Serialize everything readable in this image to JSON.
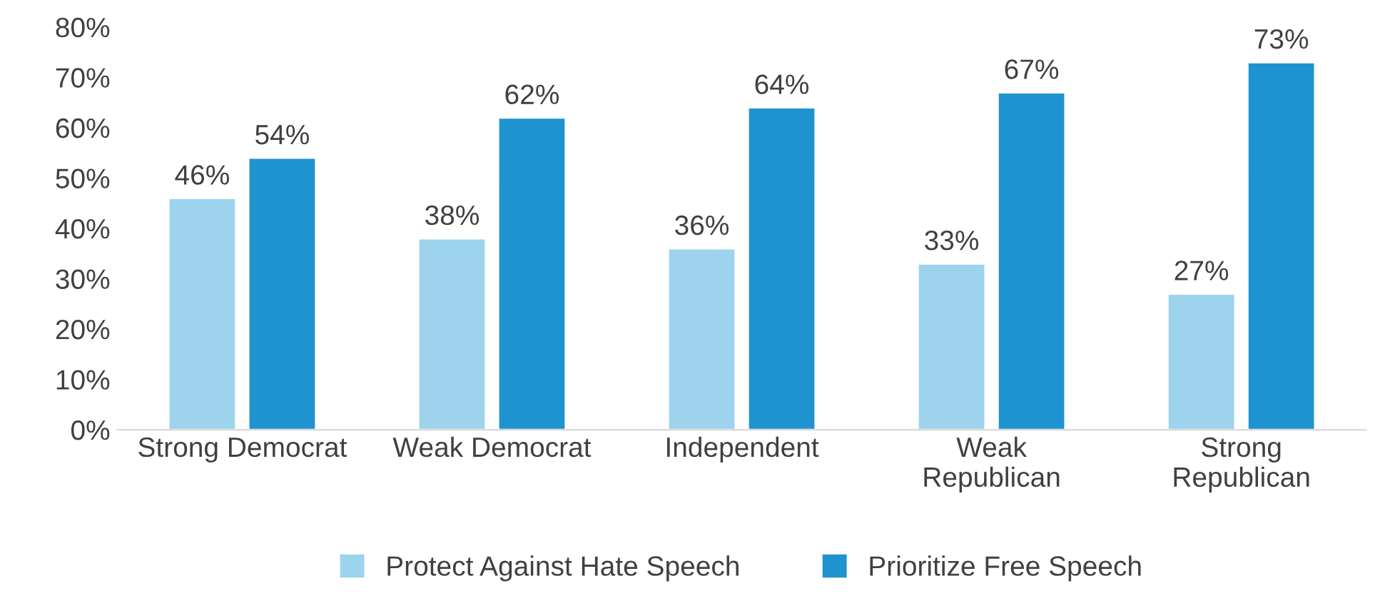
{
  "chart_data": {
    "type": "bar",
    "categories": [
      "Strong Democrat",
      "Weak Democrat",
      "Independent",
      "Weak\nRepublican",
      "Strong\nRepublican"
    ],
    "series": [
      {
        "name": "Protect Against Hate Speech",
        "color": "#9dd3ec",
        "values": [
          46,
          38,
          36,
          33,
          27
        ],
        "value_labels": [
          "46%",
          "38%",
          "36%",
          "33%",
          "27%"
        ]
      },
      {
        "name": "Prioritize Free Speech",
        "color": "#1f93cf",
        "values": [
          54,
          62,
          64,
          67,
          73
        ],
        "value_labels": [
          "54%",
          "62%",
          "64%",
          "67%",
          "73%"
        ]
      }
    ],
    "ylim": [
      0,
      80
    ],
    "yticks": [
      {
        "value": 0,
        "label": "0%"
      },
      {
        "value": 10,
        "label": "10%"
      },
      {
        "value": 20,
        "label": "20%"
      },
      {
        "value": 30,
        "label": "30%"
      },
      {
        "value": 40,
        "label": "40%"
      },
      {
        "value": 50,
        "label": "50%"
      },
      {
        "value": 60,
        "label": "60%"
      },
      {
        "value": 70,
        "label": "70%"
      },
      {
        "value": 80,
        "label": "80%"
      }
    ],
    "grid": false,
    "legend": "bottom"
  }
}
